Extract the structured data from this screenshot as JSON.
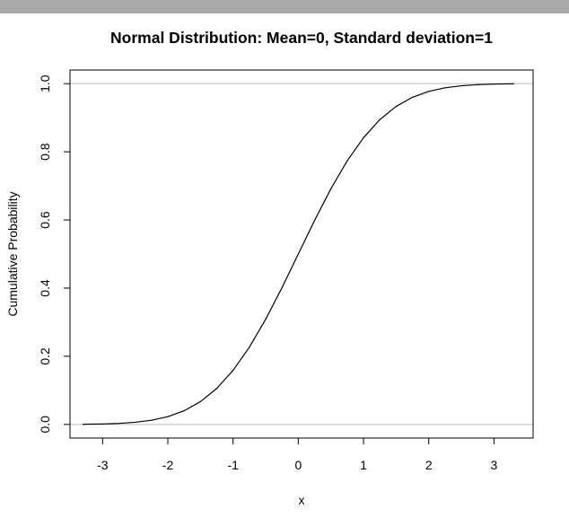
{
  "chart_data": {
    "type": "line",
    "title": "Normal Distribution:  Mean=0, Standard deviation=1",
    "xlabel": "x",
    "ylabel": "Cumulative Probability",
    "xlim": [
      -3.5,
      3.6
    ],
    "ylim": [
      -0.04,
      1.04
    ],
    "x_ticks": [
      -3,
      -2,
      -1,
      0,
      1,
      2,
      3
    ],
    "y_ticks": [
      0.0,
      0.2,
      0.4,
      0.6,
      0.8,
      1.0
    ],
    "x_tick_labels": [
      "-3",
      "-2",
      "-1",
      "0",
      "1",
      "2",
      "3"
    ],
    "y_tick_labels": [
      "0.0",
      "0.2",
      "0.4",
      "0.6",
      "0.8",
      "1.0"
    ],
    "reference_lines_y": [
      0,
      1
    ],
    "reference_line_color": "#bebebe",
    "line_color": "#000000",
    "x": [
      -3.3,
      -3.0,
      -2.75,
      -2.5,
      -2.25,
      -2.0,
      -1.75,
      -1.5,
      -1.25,
      -1.0,
      -0.75,
      -0.5,
      -0.25,
      0.0,
      0.25,
      0.5,
      0.75,
      1.0,
      1.25,
      1.5,
      1.75,
      2.0,
      2.25,
      2.5,
      2.75,
      3.0,
      3.3
    ],
    "y": [
      0.0005,
      0.0013,
      0.003,
      0.0062,
      0.0122,
      0.0228,
      0.0401,
      0.0668,
      0.1056,
      0.1587,
      0.2266,
      0.3085,
      0.4013,
      0.5,
      0.5987,
      0.6915,
      0.7734,
      0.8413,
      0.8944,
      0.9332,
      0.9599,
      0.9772,
      0.9878,
      0.9938,
      0.997,
      0.9987,
      0.9995
    ]
  }
}
